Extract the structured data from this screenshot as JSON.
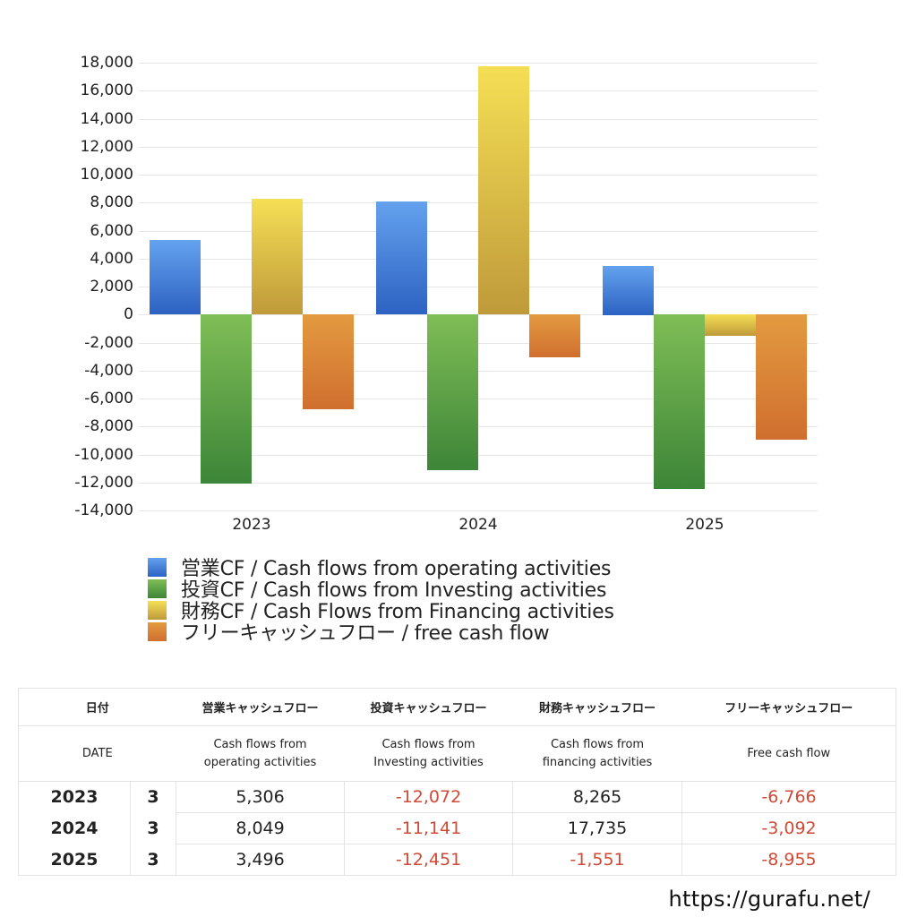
{
  "chart_data": {
    "type": "bar",
    "title": "",
    "xlabel": "",
    "ylabel": "",
    "categories": [
      "2023",
      "2024",
      "2025"
    ],
    "ylim": [
      -14000,
      18000
    ],
    "yticks": [
      18000,
      16000,
      14000,
      12000,
      10000,
      8000,
      6000,
      4000,
      2000,
      0,
      -2000,
      -4000,
      -6000,
      -8000,
      -10000,
      -12000,
      -14000
    ],
    "ytick_labels": [
      "18,000",
      "16,000",
      "14,000",
      "12,000",
      "10,000",
      "8,000",
      "6,000",
      "4,000",
      "2,000",
      "0",
      "-2,000",
      "-4,000",
      "-6,000",
      "-8,000",
      "-10,000",
      "-12,000",
      "-14,000"
    ],
    "grid": true,
    "legend_position": "bottom",
    "series": [
      {
        "name": "営業CF / Cash flows from operating activities",
        "values": [
          5306,
          8049,
          3496
        ],
        "color_top": "#64a2ee",
        "color_bottom": "#2d62c2"
      },
      {
        "name": "投資CF / Cash flows from Investing activities",
        "values": [
          -12072,
          -11141,
          -12451
        ],
        "color_top": "#7fbd56",
        "color_bottom": "#3d8538"
      },
      {
        "name": "財務CF / Cash Flows from Financing activities",
        "values": [
          8265,
          17735,
          -1551
        ],
        "color_top": "#f5df55",
        "color_bottom": "#bf9a3a"
      },
      {
        "name": "フリーキャッシュフロー / free cash flow",
        "values": [
          -6766,
          -3092,
          -8955
        ],
        "color_top": "#e39a40",
        "color_bottom": "#d06f2f"
      }
    ]
  },
  "legend": {
    "items": [
      {
        "label": "営業CF / Cash flows from operating activities",
        "color": "#3f7fdc"
      },
      {
        "label": "投資CF / Cash flows from Investing activities",
        "color": "#4f9a44"
      },
      {
        "label": "財務CF / Cash Flows from Financing activities",
        "color": "#dcc04a"
      },
      {
        "label": "フリーキャッシュフロー / free cash flow",
        "color": "#dc8236"
      }
    ]
  },
  "table": {
    "header_jp": [
      "日付",
      "営業キャッシュフロー",
      "投資キャッシュフロー",
      "財務キャッシュフロー",
      "フリーキャッシュフロー"
    ],
    "header_en": [
      "DATE",
      "Cash flows from\noperating activities",
      "Cash flows from\nInvesting activities",
      "Cash flows from\nfinancing activities",
      "Free cash flow"
    ],
    "rows": [
      {
        "year": "2023",
        "month": "3",
        "operating": "5,306",
        "investing": "-12,072",
        "financing": "8,265",
        "free": "-6,766"
      },
      {
        "year": "2024",
        "month": "3",
        "operating": "8,049",
        "investing": "-11,141",
        "financing": "17,735",
        "free": "-3,092"
      },
      {
        "year": "2025",
        "month": "3",
        "operating": "3,496",
        "investing": "-12,451",
        "financing": "-1,551",
        "free": "-8,955"
      }
    ],
    "negative_color": "#d04a35"
  },
  "footer": {
    "url_text": "https://gurafu.net/"
  }
}
